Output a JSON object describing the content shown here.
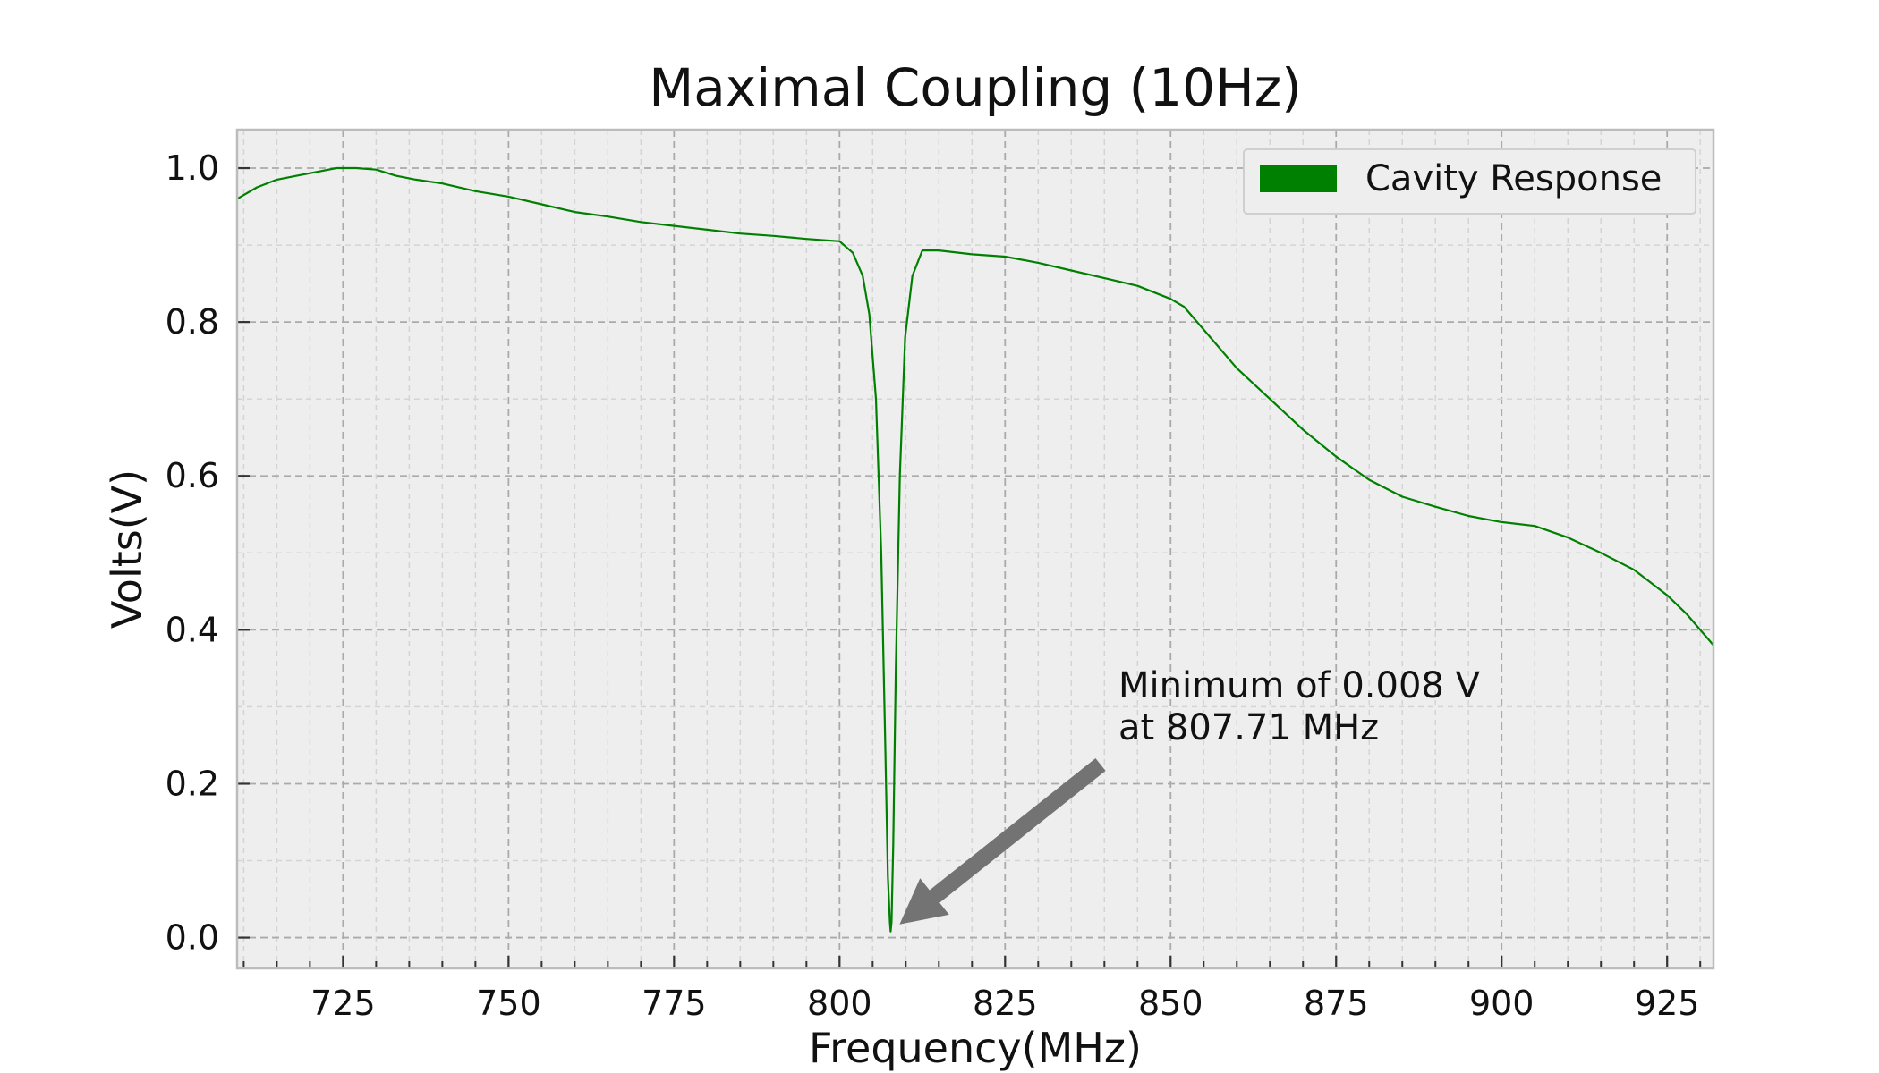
{
  "chart_data": {
    "type": "line",
    "title": "Maximal Coupling (10Hz)",
    "xlabel": "Frequency(MHz)",
    "ylabel": "Volts(V)",
    "xlim": [
      709,
      932
    ],
    "ylim": [
      -0.04,
      1.05
    ],
    "x_ticks": [
      725,
      750,
      775,
      800,
      825,
      850,
      875,
      900,
      925
    ],
    "x_tick_labels": [
      "725",
      "750",
      "775",
      "800",
      "825",
      "850",
      "875",
      "900",
      "925"
    ],
    "y_ticks": [
      0.0,
      0.2,
      0.4,
      0.6,
      0.8,
      1.0
    ],
    "y_tick_labels": [
      "0.0",
      "0.2",
      "0.4",
      "0.6",
      "0.8",
      "1.0"
    ],
    "grid": true,
    "legend_position": "top-right",
    "series": [
      {
        "name": "Cavity Response",
        "color": "#008000",
        "x": [
          709,
          712,
          715,
          718,
          721,
          724,
          727,
          730,
          733,
          736,
          740,
          745,
          750,
          755,
          760,
          765,
          770,
          775,
          780,
          785,
          790,
          795,
          800,
          802,
          803.5,
          804.5,
          805.5,
          806.3,
          806.9,
          807.3,
          807.6,
          807.71,
          807.85,
          808.1,
          808.5,
          809.1,
          809.9,
          811,
          812.5,
          815,
          820,
          825,
          830,
          835,
          840,
          845,
          850,
          852,
          855,
          860,
          865,
          870,
          875,
          880,
          885,
          890,
          895,
          900,
          905,
          910,
          915,
          920,
          925,
          928,
          930,
          932
        ],
        "y": [
          0.96,
          0.975,
          0.985,
          0.99,
          0.995,
          1.0,
          1.0,
          0.998,
          0.99,
          0.985,
          0.98,
          0.97,
          0.963,
          0.953,
          0.943,
          0.937,
          0.93,
          0.925,
          0.92,
          0.915,
          0.912,
          0.908,
          0.905,
          0.89,
          0.86,
          0.81,
          0.7,
          0.5,
          0.25,
          0.08,
          0.02,
          0.008,
          0.02,
          0.12,
          0.35,
          0.6,
          0.78,
          0.86,
          0.893,
          0.893,
          0.888,
          0.885,
          0.877,
          0.867,
          0.857,
          0.847,
          0.83,
          0.82,
          0.79,
          0.74,
          0.7,
          0.66,
          0.625,
          0.595,
          0.573,
          0.56,
          0.548,
          0.54,
          0.535,
          0.52,
          0.5,
          0.478,
          0.445,
          0.42,
          0.4,
          0.38
        ]
      }
    ],
    "annotation": {
      "line1": "Minimum of 0.008 V",
      "line2": "at 807.71 MHz",
      "point": [
        807.71,
        0.008
      ],
      "arrow_color": "#737373"
    }
  }
}
